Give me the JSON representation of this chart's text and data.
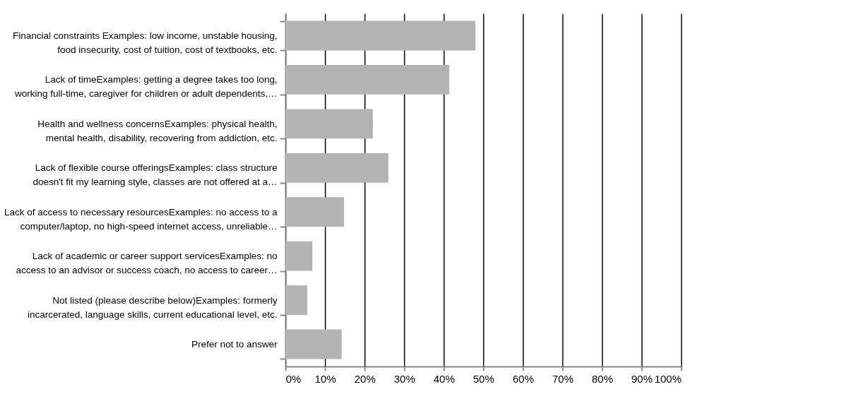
{
  "chart_data": {
    "type": "bar",
    "orientation": "horizontal",
    "categories": [
      "Financial constraints Examples: low income, unstable housing,\nfood insecurity, cost of tuition, cost of textbooks, etc.",
      "Lack of timeExamples: getting a degree takes too long,\nworking full-time, caregiver for children or adult dependents,…",
      "Health and wellness concernsExamples: physical health,\nmental health, disability, recovering from addiction, etc.",
      "Lack of flexible course offeringsExamples: class structure\ndoesn't fit my learning style, classes are not offered at a…",
      "Lack of access to necessary resourcesExamples: no access to a\ncomputer/laptop, no high-speed internet access, unreliable…",
      "Lack of academic or career support servicesExamples: no\naccess to an advisor or success coach, no access to career…",
      "Not listed (please describe below)Examples: formerly\nincarcerated, language skills, current educational level, etc.",
      "Prefer not to answer"
    ],
    "values": [
      48.0,
      41.4,
      22.1,
      26.0,
      14.8,
      6.8,
      5.5,
      14.2
    ],
    "color": "#b3b3b3",
    "xlim": [
      0,
      100
    ],
    "xticks": [
      {
        "value": 0,
        "label": "0%"
      },
      {
        "value": 10,
        "label": "10%"
      },
      {
        "value": 20,
        "label": "20%"
      },
      {
        "value": 30,
        "label": "30%"
      },
      {
        "value": 40,
        "label": "40%"
      },
      {
        "value": 50,
        "label": "50%"
      },
      {
        "value": 60,
        "label": "60%"
      },
      {
        "value": 70,
        "label": "70%"
      },
      {
        "value": 80,
        "label": "80%"
      },
      {
        "value": 90,
        "label": "90%"
      },
      {
        "value": 100,
        "label": "100%"
      }
    ],
    "grid": "x"
  }
}
